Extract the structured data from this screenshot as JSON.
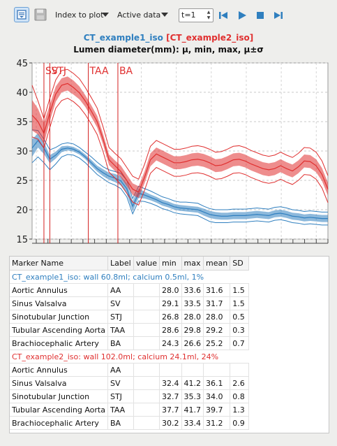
{
  "toolbar": {
    "index_label": "Index to plot",
    "active_label": "Active data",
    "time_value": "t=1",
    "icons": [
      "list-view-icon",
      "save-icon",
      "skip-back-icon",
      "play-icon",
      "stop-icon",
      "skip-forward-icon"
    ]
  },
  "chart_data": {
    "type": "line",
    "title_series": [
      "CT_example1_iso",
      "[CT_example2_iso]"
    ],
    "title_colors": [
      "#2f7fbf",
      "#e03030"
    ],
    "subtitle": "Lumen diameter(mm): μ, min, max, μ±σ",
    "ylim": [
      15,
      45
    ],
    "yticks": [
      15,
      20,
      25,
      30,
      35,
      40,
      45
    ],
    "xlim": [
      0,
      100
    ],
    "grid": true,
    "markers": [
      {
        "label": "SV",
        "x": 4
      },
      {
        "label": "STJ",
        "x": 6
      },
      {
        "label": "TAA",
        "x": 19
      },
      {
        "label": "BA",
        "x": 29
      }
    ],
    "series": [
      {
        "name": "CT_example1_iso",
        "color": "#2f7fbf",
        "x": [
          0,
          2,
          4,
          6,
          8,
          10,
          12,
          14,
          16,
          18,
          20,
          22,
          24,
          26,
          28,
          30,
          32,
          34,
          36,
          38,
          40,
          42,
          44,
          46,
          48,
          50,
          52,
          54,
          56,
          58,
          60,
          62,
          64,
          66,
          68,
          70,
          72,
          74,
          76,
          78,
          80,
          82,
          84,
          86,
          88,
          90,
          92,
          94,
          96,
          98,
          100
        ],
        "mean": [
          30.5,
          31.8,
          30.5,
          28.6,
          29.3,
          30.3,
          30.5,
          30.3,
          29.8,
          29.0,
          28.0,
          27.0,
          26.3,
          25.7,
          25.4,
          24.9,
          23.6,
          20.6,
          22.8,
          22.5,
          22.1,
          21.7,
          21.2,
          20.9,
          20.5,
          20.3,
          20.2,
          20.1,
          20.0,
          19.6,
          19.2,
          19.0,
          18.9,
          18.9,
          19.0,
          19.0,
          19.0,
          19.1,
          19.2,
          19.1,
          19.0,
          19.3,
          19.4,
          19.2,
          18.9,
          18.8,
          18.6,
          18.7,
          18.6,
          18.5,
          18.5
        ],
        "sd": [
          1.5,
          1.2,
          1.0,
          0.7,
          0.6,
          0.5,
          0.4,
          0.4,
          0.4,
          0.4,
          0.5,
          0.5,
          0.6,
          0.6,
          0.7,
          0.8,
          0.9,
          0.9,
          0.8,
          0.6,
          0.5,
          0.5,
          0.5,
          0.5,
          0.5,
          0.5,
          0.5,
          0.5,
          0.5,
          0.6,
          0.6,
          0.6,
          0.6,
          0.6,
          0.6,
          0.6,
          0.6,
          0.6,
          0.6,
          0.6,
          0.6,
          0.6,
          0.6,
          0.6,
          0.6,
          0.6,
          0.6,
          0.6,
          0.6,
          0.6,
          0.6
        ],
        "min": [
          28.0,
          29.0,
          28.0,
          26.8,
          27.8,
          29.0,
          29.4,
          29.3,
          28.8,
          28.0,
          27.0,
          26.0,
          25.3,
          24.6,
          24.2,
          23.6,
          22.2,
          19.3,
          21.5,
          21.4,
          21.1,
          20.7,
          20.2,
          19.9,
          19.5,
          19.3,
          19.2,
          19.1,
          19.0,
          18.5,
          18.0,
          17.8,
          17.8,
          17.8,
          17.9,
          17.9,
          17.9,
          18.0,
          18.1,
          18.0,
          17.9,
          18.2,
          18.3,
          18.1,
          17.8,
          17.7,
          17.5,
          17.6,
          17.5,
          17.4,
          17.4
        ],
        "max": [
          33.6,
          33.5,
          32.0,
          30.2,
          30.6,
          31.2,
          31.4,
          31.2,
          30.6,
          29.8,
          29.0,
          28.1,
          27.3,
          26.8,
          26.5,
          26.2,
          25.0,
          21.9,
          24.0,
          23.6,
          23.2,
          22.7,
          22.2,
          21.9,
          21.5,
          21.3,
          21.3,
          21.2,
          21.1,
          20.6,
          20.2,
          20.0,
          20.0,
          20.0,
          20.1,
          20.1,
          20.1,
          20.2,
          20.3,
          20.2,
          20.1,
          20.4,
          20.5,
          20.3,
          20.0,
          19.9,
          19.7,
          19.8,
          19.7,
          19.6,
          19.6
        ]
      },
      {
        "name": "CT_example2_iso",
        "color": "#e03030",
        "x": [
          0,
          2,
          4,
          6,
          8,
          10,
          12,
          14,
          16,
          18,
          20,
          22,
          24,
          26,
          28,
          30,
          32,
          34,
          36,
          38,
          40,
          42,
          44,
          46,
          48,
          50,
          52,
          54,
          56,
          58,
          60,
          62,
          64,
          66,
          68,
          70,
          72,
          74,
          76,
          78,
          80,
          82,
          84,
          86,
          88,
          90,
          92,
          94,
          96,
          98,
          100
        ],
        "mean": [
          36.1,
          35.0,
          33.0,
          36.5,
          39.7,
          41.2,
          41.5,
          40.8,
          39.9,
          38.5,
          36.8,
          35.0,
          32.0,
          28.5,
          27.5,
          26.5,
          25.0,
          23.5,
          23.0,
          25.5,
          28.5,
          29.5,
          29.0,
          28.5,
          28.0,
          28.0,
          28.2,
          28.5,
          28.6,
          28.4,
          28.0,
          27.5,
          27.6,
          28.0,
          28.5,
          28.6,
          28.3,
          27.8,
          27.4,
          27.0,
          26.8,
          27.0,
          27.5,
          27.0,
          26.6,
          27.3,
          28.3,
          28.2,
          27.5,
          26.0,
          23.5
        ],
        "sd": [
          2.6,
          2.2,
          1.8,
          1.4,
          1.3,
          1.2,
          1.2,
          1.2,
          1.1,
          1.0,
          1.0,
          1.0,
          0.9,
          0.9,
          0.9,
          1.0,
          1.0,
          1.0,
          1.0,
          1.0,
          1.1,
          1.1,
          1.1,
          1.1,
          1.1,
          1.1,
          1.1,
          1.1,
          1.1,
          1.1,
          1.1,
          1.1,
          1.1,
          1.1,
          1.1,
          1.1,
          1.1,
          1.1,
          1.1,
          1.1,
          1.1,
          1.1,
          1.1,
          1.1,
          1.1,
          1.1,
          1.1,
          1.1,
          1.1,
          1.1,
          1.1
        ],
        "min": [
          32.4,
          32.0,
          30.5,
          34.0,
          37.3,
          38.6,
          39.0,
          38.4,
          37.5,
          36.2,
          34.6,
          32.8,
          29.9,
          26.4,
          25.4,
          24.3,
          22.8,
          21.3,
          20.8,
          23.3,
          26.2,
          27.2,
          26.7,
          26.2,
          25.7,
          25.7,
          25.9,
          26.2,
          26.3,
          26.1,
          25.7,
          25.2,
          25.3,
          25.7,
          26.2,
          26.3,
          26.0,
          25.5,
          25.1,
          24.7,
          24.5,
          24.7,
          25.2,
          24.7,
          24.3,
          25.0,
          26.0,
          25.9,
          25.2,
          23.7,
          21.2
        ],
        "max": [
          41.2,
          38.5,
          35.5,
          39.0,
          42.1,
          43.7,
          43.9,
          43.2,
          42.3,
          40.8,
          39.1,
          37.3,
          34.1,
          30.6,
          29.6,
          28.7,
          27.2,
          25.7,
          25.2,
          27.7,
          30.8,
          31.8,
          31.3,
          30.8,
          30.3,
          30.3,
          30.5,
          30.8,
          30.9,
          30.7,
          30.3,
          29.8,
          29.9,
          30.3,
          30.8,
          30.9,
          30.6,
          30.1,
          29.7,
          29.3,
          29.1,
          29.3,
          29.8,
          29.3,
          28.9,
          29.6,
          30.6,
          30.5,
          29.8,
          28.3,
          25.8
        ]
      }
    ]
  },
  "table": {
    "headers": [
      "Marker Name",
      "Label",
      "value",
      "min",
      "max",
      "mean",
      "SD"
    ],
    "groups": [
      {
        "title": "CT_example1_iso: wall 60.8ml; calcium 0.5ml, 1%",
        "color": "#2f7fbf",
        "rows": [
          [
            "Aortic Annulus",
            "AA",
            "",
            "28.0",
            "33.6",
            "31.6",
            "1.5"
          ],
          [
            "Sinus Valsalva",
            "SV",
            "",
            "29.1",
            "33.5",
            "31.7",
            "1.5"
          ],
          [
            "Sinotubular Junction",
            "STJ",
            "",
            "26.8",
            "28.0",
            "28.0",
            "0.5"
          ],
          [
            "Tubular Ascending Aorta",
            "TAA",
            "",
            "28.6",
            "29.8",
            "29.2",
            "0.3"
          ],
          [
            "Brachiocephalic Artery",
            "BA",
            "",
            "24.3",
            "26.6",
            "25.2",
            "0.7"
          ]
        ]
      },
      {
        "title": "CT_example2_iso: wall 102.0ml; calcium 24.1ml, 24%",
        "color": "#e03030",
        "rows": [
          [
            "Aortic Annulus",
            "AA",
            "",
            "",
            "",
            "",
            ""
          ],
          [
            "Sinus Valsalva",
            "SV",
            "",
            "32.4",
            "41.2",
            "36.1",
            "2.6"
          ],
          [
            "Sinotubular Junction",
            "STJ",
            "",
            "32.7",
            "35.3",
            "34.0",
            "0.8"
          ],
          [
            "Tubular Ascending Aorta",
            "TAA",
            "",
            "37.7",
            "41.7",
            "39.7",
            "1.3"
          ],
          [
            "Brachiocephalic Artery",
            "BA",
            "",
            "30.2",
            "33.4",
            "31.2",
            "0.9"
          ]
        ]
      }
    ]
  }
}
